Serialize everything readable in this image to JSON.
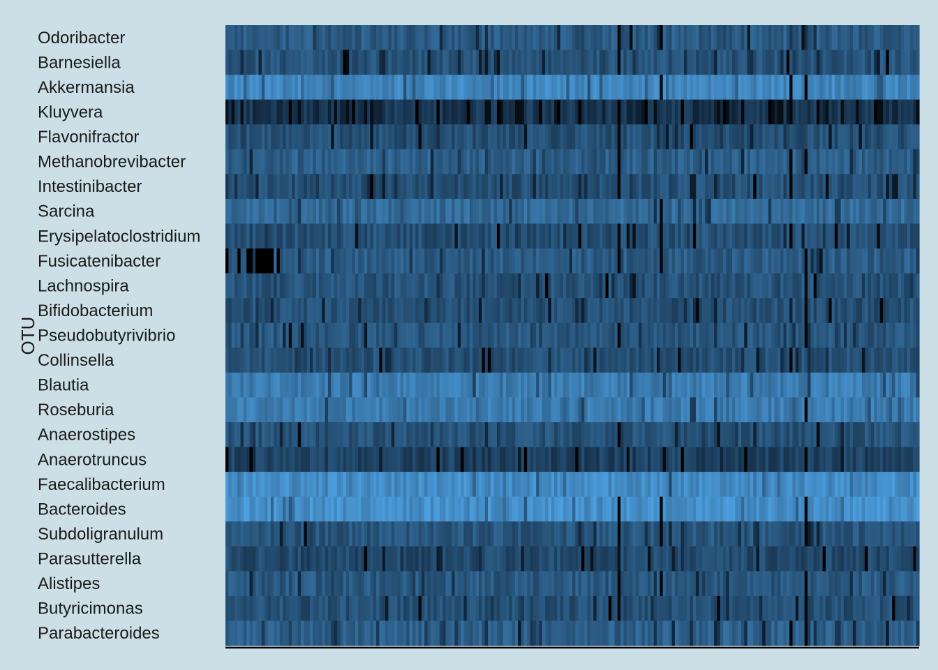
{
  "chart_data": {
    "type": "heatmap",
    "title": "",
    "xlabel": "",
    "ylabel": "OTU",
    "rows": [
      "Odoribacter",
      "Barnesiella",
      "Akkermansia",
      "Kluyvera",
      "Flavonifractor",
      "Methanobrevibacter",
      "Intestinibacter",
      "Sarcina",
      "Erysipelatoclostridium",
      "Fusicatenibacter",
      "Lachnospira",
      "Bifidobacterium",
      "Pseudobutyrivibrio",
      "Collinsella",
      "Blautia",
      "Roseburia",
      "Anaerostipes",
      "Anaerotruncus",
      "Faecalibacterium",
      "Bacteroides",
      "Subdoligranulum",
      "Parasutterella",
      "Alistipes",
      "Butyricimonas",
      "Parabacteroides"
    ],
    "row_mean_level": [
      0.45,
      0.4,
      0.72,
      0.22,
      0.38,
      0.48,
      0.38,
      0.55,
      0.38,
      0.45,
      0.4,
      0.38,
      0.42,
      0.38,
      0.66,
      0.66,
      0.4,
      0.3,
      0.76,
      0.78,
      0.42,
      0.34,
      0.44,
      0.38,
      0.48
    ],
    "column_count": 230,
    "color_scale": {
      "low": "#000000",
      "mid": "#132b43",
      "high": "#56b1f7"
    },
    "grid": false,
    "legend": "none"
  }
}
